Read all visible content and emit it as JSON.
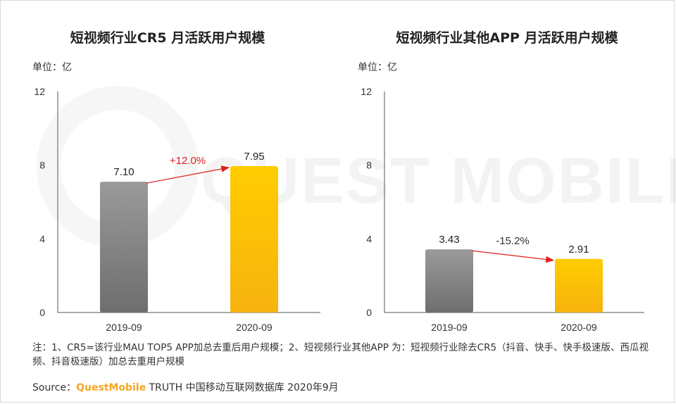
{
  "chart_data": [
    {
      "type": "bar",
      "title": "短视频行业CR5 月活跃用户规模",
      "unit_label": "单位：亿",
      "categories": [
        "2019-09",
        "2020-09"
      ],
      "values": [
        7.1,
        7.95
      ],
      "value_labels": [
        "7.10",
        "7.95"
      ],
      "yticks": [
        "0",
        "4",
        "8",
        "12"
      ],
      "ylim": [
        0,
        12
      ],
      "bar_colors": [
        "#8a8a8a",
        "#ffc000"
      ],
      "change_label": "+12.0%",
      "change_color": "#e02020",
      "grid": false,
      "legend": "none"
    },
    {
      "type": "bar",
      "title": "短视频行业其他APP 月活跃用户规模",
      "unit_label": "单位：亿",
      "categories": [
        "2019-09",
        "2020-09"
      ],
      "values": [
        3.43,
        2.91
      ],
      "value_labels": [
        "3.43",
        "2.91"
      ],
      "yticks": [
        "0",
        "4",
        "8",
        "12"
      ],
      "ylim": [
        0,
        12
      ],
      "bar_colors": [
        "#8a8a8a",
        "#ffc000"
      ],
      "change_label": "-15.2%",
      "change_color": "#333333",
      "grid": false,
      "legend": "none"
    }
  ],
  "watermark": "QUEST MOBILE",
  "note": "注：1、CR5=该行业MAU TOP5 APP加总去重后用户规模；2、短视频行业其他APP 为：短视频行业除去CR5（抖音、快手、快手极速版、西瓜视频、抖音极速版）加总去重用户规模",
  "source": {
    "prefix": "Source：",
    "brand": "QuestMobile",
    "suffix": " TRUTH 中国移动互联网数据库 2020年9月"
  }
}
